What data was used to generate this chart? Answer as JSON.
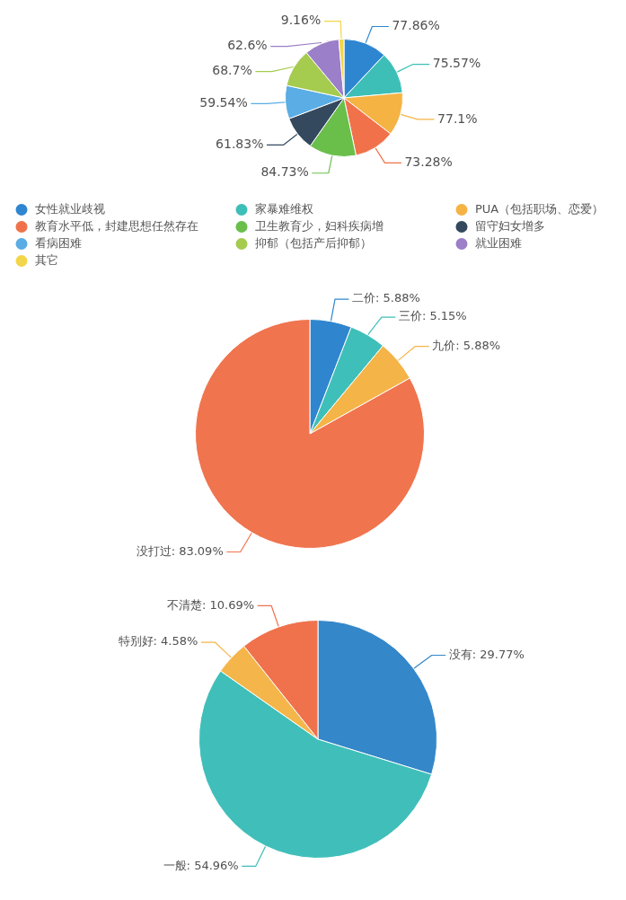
{
  "chart_data": [
    {
      "type": "pie",
      "categories": [
        "女性就业歧视",
        "家暴难维权",
        "PUA（包括职场、恋爱）",
        "教育水平低，封建思想任然存在",
        "卫生教育少，妇科疾病增",
        "留守妇女增多",
        "看病困难",
        "抑郁（包括产后抑郁）",
        "就业困难",
        "其它"
      ],
      "values": [
        77.86,
        75.57,
        77.1,
        73.28,
        84.73,
        61.83,
        59.54,
        68.7,
        62.6,
        9.16
      ],
      "value_labels": [
        "77.86%",
        "75.57%",
        "77.1%",
        "73.28%",
        "84.73%",
        "61.83%",
        "59.54%",
        "68.7%",
        "62.6%",
        "9.16%"
      ],
      "colors": [
        "#2e86d1",
        "#3dbfb8",
        "#f5b343",
        "#f1724a",
        "#6abf4b",
        "#34495e",
        "#5aade5",
        "#a5cb4f",
        "#9b7fc8",
        "#f2d649"
      ],
      "legend": "bottom"
    },
    {
      "type": "pie",
      "categories": [
        "二价",
        "三价",
        "九价",
        "没打过"
      ],
      "values": [
        5.88,
        5.15,
        5.88,
        83.09
      ],
      "value_labels": [
        "5.88%",
        "5.15%",
        "5.88%",
        "83.09%"
      ],
      "colors": [
        "#2f86cf",
        "#3fbfb9",
        "#f5b447",
        "#f0744e"
      ]
    },
    {
      "type": "pie",
      "categories": [
        "没有",
        "一般",
        "特别好",
        "不清楚"
      ],
      "values": [
        29.77,
        54.96,
        4.58,
        10.69
      ],
      "value_labels": [
        "29.77%",
        "54.96%",
        "4.58%",
        "10.69%"
      ],
      "colors": [
        "#3487c9",
        "#40bfba",
        "#f4b64b",
        "#ef724d"
      ]
    }
  ]
}
